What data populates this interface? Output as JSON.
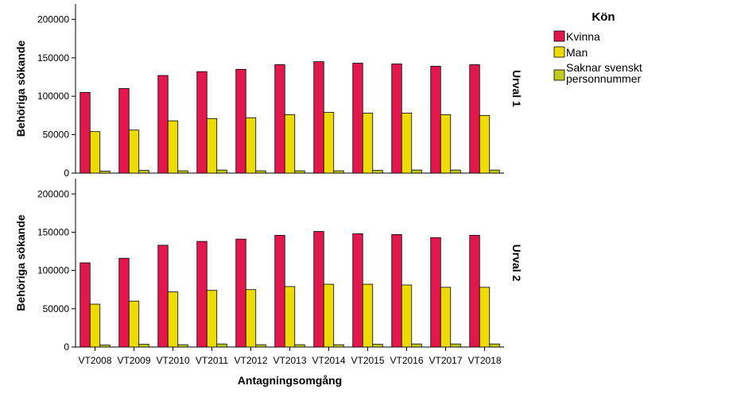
{
  "chart_data": {
    "type": "bar",
    "xlabel": "Antagningsomgång",
    "ylabel": "Behöriga sökande",
    "categories": [
      "VT2008",
      "VT2009",
      "VT2010",
      "VT2011",
      "VT2012",
      "VT2013",
      "VT2014",
      "VT2015",
      "VT2016",
      "VT2017",
      "VT2018"
    ],
    "ylim": [
      0,
      220000
    ],
    "yticks": [
      0,
      50000,
      100000,
      150000,
      200000
    ],
    "ytick_labels": [
      "0",
      "50000",
      "100000",
      "150000",
      "200000"
    ],
    "grid": false,
    "legend": {
      "title": "Kön",
      "placement": "right",
      "entries": [
        {
          "label": "Kvinna",
          "color": "#e3174c"
        },
        {
          "label": "Man",
          "color": "#ecdc00"
        },
        {
          "label": "Saknar svenskt personnummer",
          "lines": [
            "Saknar svenskt",
            "personnummer"
          ],
          "color": "#c0cc1a"
        }
      ]
    },
    "panels": [
      {
        "label": "Urval 1",
        "series": [
          {
            "name": "Kvinna",
            "values": [
              105000,
              110000,
              127000,
              132000,
              135000,
              141000,
              145000,
              143000,
              142000,
              139000,
              141000
            ]
          },
          {
            "name": "Man",
            "values": [
              54000,
              56000,
              68000,
              71000,
              72000,
              76000,
              79000,
              78000,
              78000,
              76000,
              75000
            ]
          },
          {
            "name": "Saknar svenskt personnummer",
            "values": [
              2500,
              3500,
              3000,
              4000,
              3000,
              3000,
              3000,
              3500,
              4000,
              4000,
              4000
            ]
          }
        ]
      },
      {
        "label": "Urval 2",
        "series": [
          {
            "name": "Kvinna",
            "values": [
              110000,
              116000,
              133000,
              138000,
              141000,
              146000,
              151000,
              148000,
              147000,
              143000,
              146000
            ]
          },
          {
            "name": "Man",
            "values": [
              56000,
              60000,
              72000,
              74000,
              75000,
              79000,
              82000,
              82000,
              81000,
              78000,
              78000
            ]
          },
          {
            "name": "Saknar svenskt personnummer",
            "values": [
              2500,
              3500,
              3000,
              4000,
              3000,
              3000,
              3000,
              3500,
              4000,
              4000,
              4000
            ]
          }
        ]
      }
    ]
  }
}
